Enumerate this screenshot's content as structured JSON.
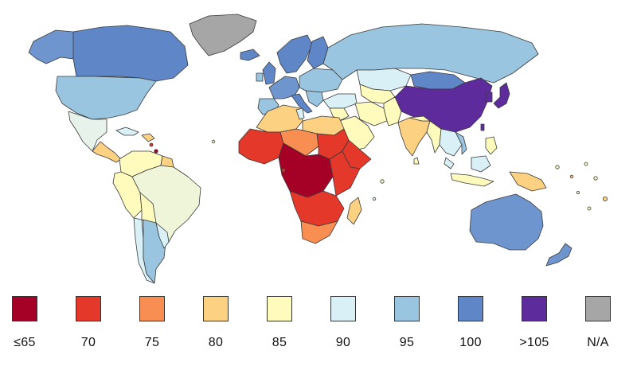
{
  "legend": {
    "items": [
      {
        "label": "≤65",
        "color": "#a50026"
      },
      {
        "label": "70",
        "color": "#e3382a"
      },
      {
        "label": "75",
        "color": "#f98e52"
      },
      {
        "label": "80",
        "color": "#fdd182"
      },
      {
        "label": "85",
        "color": "#fefbbd"
      },
      {
        "label": "90",
        "color": "#d9f0f6"
      },
      {
        "label": "95",
        "color": "#99c5e0"
      },
      {
        "label": "100",
        "color": "#5f87c8"
      },
      {
        "label": ">105",
        "color": "#5d2b9c"
      },
      {
        "label": "N/A",
        "color": "#a6a6a6"
      }
    ]
  },
  "regions": [
    {
      "id": "greenland",
      "name": "Greenland",
      "color": "#a6a6a6"
    },
    {
      "id": "alaska",
      "name": "Alaska",
      "color": "#6f95cf"
    },
    {
      "id": "canada",
      "name": "Canada",
      "color": "#5f87c8"
    },
    {
      "id": "usa",
      "name": "United States",
      "color": "#99c5e0"
    },
    {
      "id": "mexico",
      "name": "Mexico",
      "color": "#e6f2ea"
    },
    {
      "id": "central-america",
      "name": "Central America",
      "color": "#fdd182"
    },
    {
      "id": "cuba",
      "name": "Cuba",
      "color": "#d9f0f6"
    },
    {
      "id": "caribbean",
      "name": "Caribbean",
      "color": "#fdd182"
    },
    {
      "id": "colombia-venezuela",
      "name": "Colombia & Venezuela",
      "color": "#fefbbd"
    },
    {
      "id": "guianas",
      "name": "Guianas",
      "color": "#fdd182"
    },
    {
      "id": "peru-ecuador",
      "name": "Peru & Ecuador",
      "color": "#fefbbd"
    },
    {
      "id": "brazil",
      "name": "Brazil",
      "color": "#eef5d8"
    },
    {
      "id": "bolivia",
      "name": "Bolivia",
      "color": "#fefbbd"
    },
    {
      "id": "chile",
      "name": "Chile",
      "color": "#d9f0f6"
    },
    {
      "id": "argentina",
      "name": "Argentina",
      "color": "#99c5e0"
    },
    {
      "id": "paraguay-uruguay",
      "name": "Paraguay & Uruguay",
      "color": "#d9f0f6"
    },
    {
      "id": "iceland",
      "name": "Iceland",
      "color": "#5f87c8"
    },
    {
      "id": "uk",
      "name": "United Kingdom",
      "color": "#5f87c8"
    },
    {
      "id": "ireland",
      "name": "Ireland",
      "color": "#99c5e0"
    },
    {
      "id": "scandinavia",
      "name": "Scandinavia",
      "color": "#5f87c8"
    },
    {
      "id": "finland",
      "name": "Finland",
      "color": "#5f87c8"
    },
    {
      "id": "western-europe",
      "name": "Western Europe",
      "color": "#6f95cf"
    },
    {
      "id": "iberia",
      "name": "Iberia",
      "color": "#99c5e0"
    },
    {
      "id": "italy",
      "name": "Italy",
      "color": "#5f87c8"
    },
    {
      "id": "eastern-europe",
      "name": "Eastern Europe",
      "color": "#99c5e0"
    },
    {
      "id": "balkans",
      "name": "Balkans",
      "color": "#99c5e0"
    },
    {
      "id": "russia",
      "name": "Russia",
      "color": "#99c5e0"
    },
    {
      "id": "kazakhstan",
      "name": "Kazakhstan",
      "color": "#d9f0f6"
    },
    {
      "id": "central-asia",
      "name": "Central Asia",
      "color": "#fefbbd"
    },
    {
      "id": "caucasus-turkey",
      "name": "Turkey & Caucasus",
      "color": "#d9f0f6"
    },
    {
      "id": "mongolia",
      "name": "Mongolia",
      "color": "#5f87c8"
    },
    {
      "id": "china",
      "name": "China",
      "color": "#5d2b9c"
    },
    {
      "id": "japan",
      "name": "Japan",
      "color": "#5d2b9c"
    },
    {
      "id": "korea",
      "name": "Korea",
      "color": "#5d2b9c"
    },
    {
      "id": "taiwan",
      "name": "Taiwan",
      "color": "#5d2b9c"
    },
    {
      "id": "middle-east",
      "name": "Middle East",
      "color": "#fefbbd"
    },
    {
      "id": "arabia",
      "name": "Arabian Peninsula",
      "color": "#fefbbd"
    },
    {
      "id": "iran",
      "name": "Iran",
      "color": "#fefbbd"
    },
    {
      "id": "afghanistan-pakistan",
      "name": "Afghanistan & Pakistan",
      "color": "#fefbbd"
    },
    {
      "id": "india",
      "name": "India",
      "color": "#fdd182"
    },
    {
      "id": "sri-lanka",
      "name": "Sri Lanka",
      "color": "#fefbbd"
    },
    {
      "id": "nepal-bangladesh",
      "name": "Nepal & Bangladesh",
      "color": "#fefbbd"
    },
    {
      "id": "myanmar",
      "name": "Myanmar",
      "color": "#fefbbd"
    },
    {
      "id": "thailand-indochina",
      "name": "Thailand & Indochina",
      "color": "#d9f0f6"
    },
    {
      "id": "vietnam",
      "name": "Vietnam",
      "color": "#99c5e0"
    },
    {
      "id": "malaysia",
      "name": "Malaysia",
      "color": "#d9f0f6"
    },
    {
      "id": "indonesia",
      "name": "Indonesia",
      "color": "#fefbbd"
    },
    {
      "id": "borneo",
      "name": "Borneo",
      "color": "#d9f0f6"
    },
    {
      "id": "philippines",
      "name": "Philippines",
      "color": "#fefbbd"
    },
    {
      "id": "new-guinea",
      "name": "New Guinea",
      "color": "#fdd182"
    },
    {
      "id": "australia",
      "name": "Australia",
      "color": "#6f95cf"
    },
    {
      "id": "new-zealand",
      "name": "New Zealand",
      "color": "#6f95cf"
    },
    {
      "id": "north-africa-west",
      "name": "Morocco & Algeria",
      "color": "#fdd182"
    },
    {
      "id": "libya-egypt",
      "name": "Libya & Egypt",
      "color": "#fdd182"
    },
    {
      "id": "tunisia",
      "name": "Tunisia",
      "color": "#d9f0f6"
    },
    {
      "id": "west-africa",
      "name": "West Africa",
      "color": "#e3382a"
    },
    {
      "id": "sahel",
      "name": "Sahel",
      "color": "#f98e52"
    },
    {
      "id": "sudan",
      "name": "Sudan",
      "color": "#e3382a"
    },
    {
      "id": "horn-africa",
      "name": "Horn of Africa",
      "color": "#e3382a"
    },
    {
      "id": "central-africa",
      "name": "Central Africa",
      "color": "#a50026"
    },
    {
      "id": "east-africa",
      "name": "East Africa",
      "color": "#e3382a"
    },
    {
      "id": "southern-africa",
      "name": "Southern Africa",
      "color": "#e3382a"
    },
    {
      "id": "south-africa",
      "name": "South Africa",
      "color": "#f98e52"
    },
    {
      "id": "madagascar",
      "name": "Madagascar",
      "color": "#fdd182"
    }
  ],
  "islands": [
    {
      "name": "pacific-island",
      "color": "#fefbbd"
    },
    {
      "name": "pacific-island",
      "color": "#fdd182"
    },
    {
      "name": "pacific-island",
      "color": "#fefbbd"
    },
    {
      "name": "pacific-island",
      "color": "#fefbbd"
    },
    {
      "name": "pacific-island",
      "color": "#fdd182"
    },
    {
      "name": "pacific-island",
      "color": "#fefbbd"
    },
    {
      "name": "pacific-island",
      "color": "#fefbbd"
    },
    {
      "name": "indian-ocean-island",
      "color": "#fefbbd"
    },
    {
      "name": "indian-ocean-island",
      "color": "#d9f0f6"
    },
    {
      "name": "atlantic-island",
      "color": "#e3382a"
    },
    {
      "name": "atlantic-island",
      "color": "#fefbbd"
    },
    {
      "name": "caribbean-island",
      "color": "#e3382a"
    },
    {
      "name": "caribbean-island",
      "color": "#a50026"
    }
  ]
}
